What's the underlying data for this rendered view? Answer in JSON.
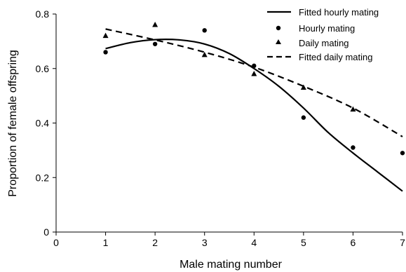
{
  "chart_data": {
    "type": "scatter",
    "xlabel": "Male mating number",
    "ylabel": "Proportion of female offspring",
    "xlim": [
      0,
      7
    ],
    "ylim": [
      0,
      0.8
    ],
    "x_ticks": [
      "0",
      "1",
      "2",
      "3",
      "4",
      "5",
      "6",
      "7"
    ],
    "y_ticks": [
      "0",
      "0.2",
      "0.4",
      "0.6",
      "0.8"
    ],
    "grid": false,
    "legend_position": "top-right",
    "series": [
      {
        "name": "Fitted hourly mating",
        "kind": "line",
        "style": "solid",
        "color": "#000000",
        "x": [
          1,
          1.5,
          2,
          2.5,
          3,
          3.5,
          4,
          4.5,
          5,
          5.5,
          6,
          6.5,
          7
        ],
        "y": [
          0.673,
          0.695,
          0.706,
          0.705,
          0.69,
          0.655,
          0.6,
          0.535,
          0.455,
          0.365,
          0.29,
          0.22,
          0.15
        ]
      },
      {
        "name": "Hourly mating",
        "kind": "points",
        "marker": "circle",
        "color": "#000000",
        "x": [
          1,
          2,
          3,
          4,
          5,
          6,
          7
        ],
        "y": [
          0.66,
          0.69,
          0.74,
          0.61,
          0.42,
          0.31,
          0.29
        ]
      },
      {
        "name": "Daily mating",
        "kind": "points",
        "marker": "triangle",
        "color": "#000000",
        "x": [
          1,
          2,
          3,
          4,
          5,
          6
        ],
        "y": [
          0.72,
          0.76,
          0.65,
          0.58,
          0.53,
          0.45
        ]
      },
      {
        "name": "Fitted daily mating",
        "kind": "line",
        "style": "dashed",
        "color": "#000000",
        "x": [
          1,
          2,
          3,
          4,
          5,
          6,
          7
        ],
        "y": [
          0.745,
          0.705,
          0.66,
          0.605,
          0.535,
          0.455,
          0.35
        ]
      }
    ]
  }
}
